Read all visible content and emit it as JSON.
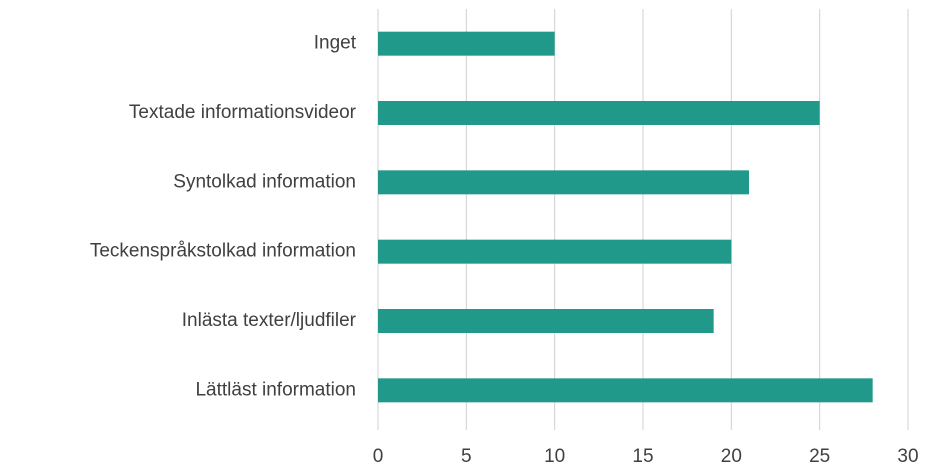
{
  "chart_data": {
    "type": "bar",
    "orientation": "horizontal",
    "categories": [
      "Inget",
      "Textade informationsvideor",
      "Syntolkad information",
      "Teckenspråkstolkad information",
      "Inlästa texter/ljudfiler",
      "Lättläst information"
    ],
    "values": [
      10,
      25,
      21,
      20,
      19,
      28
    ],
    "color": "#21998a",
    "xlim": [
      0,
      30
    ],
    "xticks": [
      0,
      5,
      10,
      15,
      20,
      25,
      30
    ],
    "grid": true
  }
}
